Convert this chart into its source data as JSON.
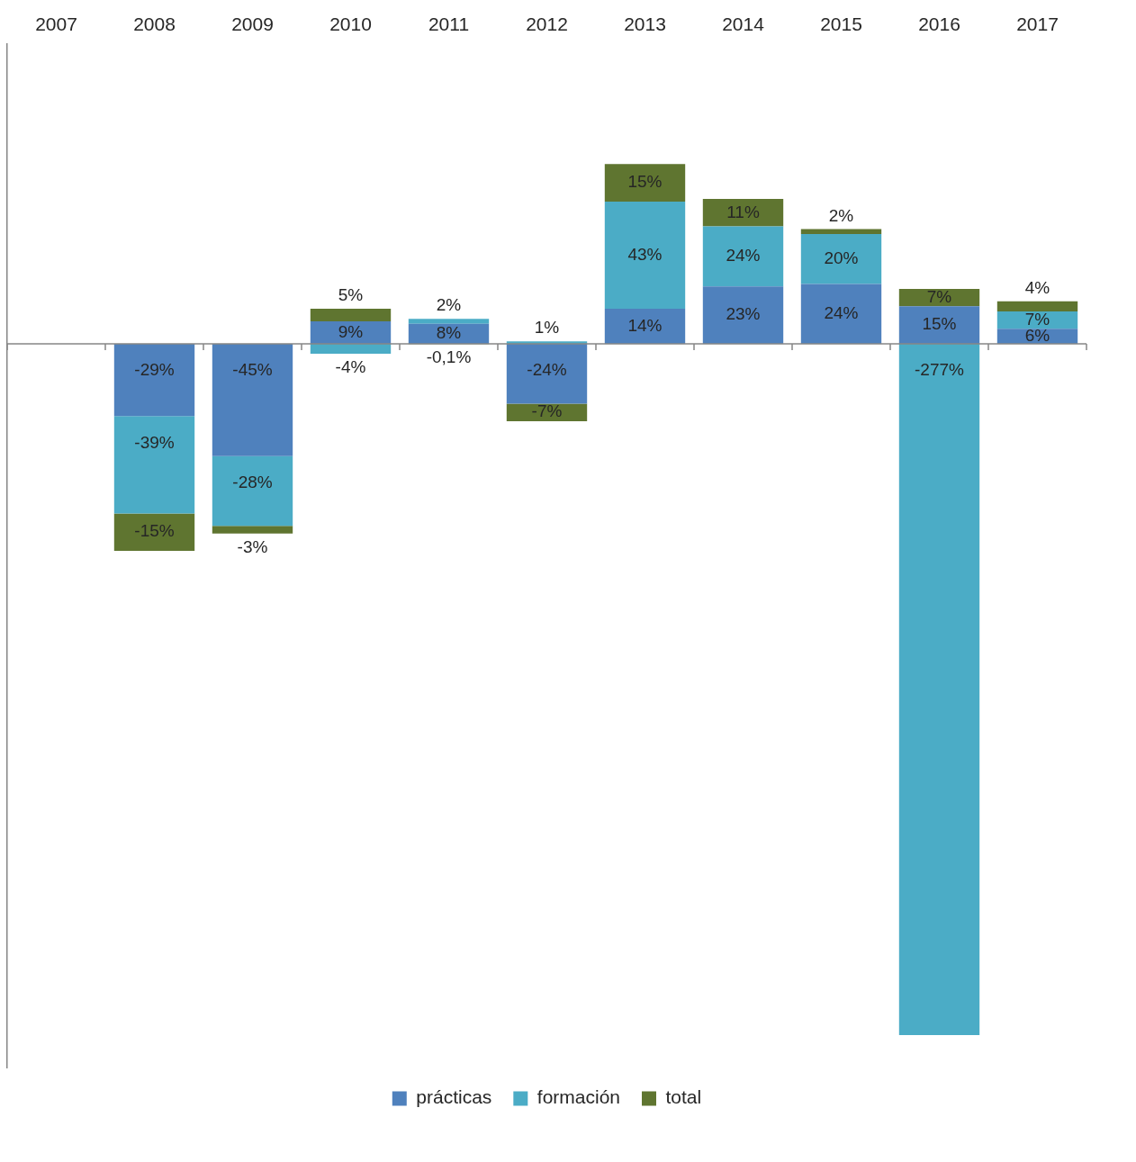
{
  "chart_data": {
    "type": "bar",
    "stacked": true,
    "categories": [
      "2007",
      "2008",
      "2009",
      "2010",
      "2011",
      "2012",
      "2013",
      "2014",
      "2015",
      "2016",
      "2017"
    ],
    "series": [
      {
        "name": "prácticas",
        "color": "#4f81bd",
        "values": [
          null,
          -29,
          -45,
          9,
          8,
          -24,
          14,
          23,
          24,
          15,
          6
        ],
        "value_labels": [
          null,
          "-29%",
          "-45%",
          "9%",
          "8%",
          "-24%",
          "14%",
          "23%",
          "24%",
          "15%",
          "6%"
        ]
      },
      {
        "name": "formación",
        "color": "#4bacc6",
        "values": [
          null,
          -39,
          -28,
          -4,
          2,
          1,
          43,
          24,
          20,
          -277,
          7
        ],
        "value_labels": [
          null,
          "-39%",
          "-28%",
          "-4%",
          "2%",
          "1%",
          "43%",
          "24%",
          "20%",
          "-277%",
          "7%"
        ]
      },
      {
        "name": "total",
        "color": "#5f7530",
        "values": [
          null,
          -15,
          -3,
          5,
          -0.1,
          -7,
          15,
          11,
          2,
          7,
          4
        ],
        "value_labels": [
          null,
          "-15%",
          "-3%",
          "5%",
          "-0,1%",
          "-7%",
          "15%",
          "11%",
          "2%",
          "7%",
          "4%"
        ]
      }
    ],
    "ylim": [
      -290,
      120
    ],
    "tick_labels": "x",
    "grid": false,
    "legend": "bottom"
  }
}
